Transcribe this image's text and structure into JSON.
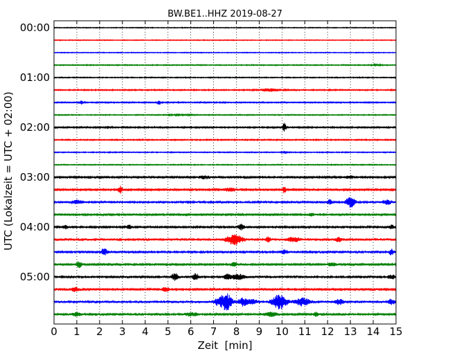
{
  "chart_data": {
    "type": "line",
    "title": "BW.BE1..HHZ 2019-08-27",
    "xlabel": "Zeit  [min]",
    "ylabel": "UTC (Lokalzeit = UTC + 02:00)",
    "xlim": [
      0,
      15
    ],
    "x_ticks": [
      "0",
      "1",
      "2",
      "3",
      "4",
      "5",
      "6",
      "7",
      "8",
      "9",
      "10",
      "11",
      "12",
      "13",
      "14",
      "15"
    ],
    "y_ticks": [
      {
        "label": "00:00",
        "row": 0
      },
      {
        "label": "01:00",
        "row": 4
      },
      {
        "label": "02:00",
        "row": 8
      },
      {
        "label": "03:00",
        "row": 12
      },
      {
        "label": "04:00",
        "row": 16
      },
      {
        "label": "05:00",
        "row": 20
      }
    ],
    "grid": "vertical-dotted",
    "trace_colors": [
      "#000000",
      "#ff0000",
      "#0000ff",
      "#008000"
    ],
    "traces": [
      {
        "start": "00:00",
        "noise": 0.4,
        "events": []
      },
      {
        "start": "00:15",
        "noise": 0.4,
        "events": []
      },
      {
        "start": "00:30",
        "noise": 0.4,
        "events": []
      },
      {
        "start": "00:45",
        "noise": 0.5,
        "events": [
          {
            "t": 14.1,
            "a": 2,
            "w": 0.15
          }
        ]
      },
      {
        "start": "01:00",
        "noise": 0.5,
        "events": []
      },
      {
        "start": "01:15",
        "noise": 0.6,
        "events": [
          {
            "t": 9.5,
            "a": 2,
            "w": 0.5
          }
        ]
      },
      {
        "start": "01:30",
        "noise": 0.6,
        "events": [
          {
            "t": 1.2,
            "a": 2.5,
            "w": 0.1
          },
          {
            "t": 4.6,
            "a": 3,
            "w": 0.1
          }
        ]
      },
      {
        "start": "01:45",
        "noise": 0.5,
        "events": [
          {
            "t": 5.5,
            "a": 1.5,
            "w": 0.4
          }
        ]
      },
      {
        "start": "02:00",
        "noise": 0.7,
        "events": [
          {
            "t": 2.3,
            "a": 1.5,
            "w": 0.2
          },
          {
            "t": 10.1,
            "a": 6,
            "w": 0.08
          }
        ]
      },
      {
        "start": "02:15",
        "noise": 0.6,
        "events": []
      },
      {
        "start": "02:30",
        "noise": 0.5,
        "events": [
          {
            "t": 10.1,
            "a": 1.5,
            "w": 0.1
          }
        ]
      },
      {
        "start": "02:45",
        "noise": 0.5,
        "events": []
      },
      {
        "start": "03:00",
        "noise": 0.9,
        "events": [
          {
            "t": 6.6,
            "a": 2,
            "w": 0.3
          },
          {
            "t": 13.0,
            "a": 2,
            "w": 0.3
          }
        ]
      },
      {
        "start": "03:15",
        "noise": 0.9,
        "events": [
          {
            "t": 2.9,
            "a": 5,
            "w": 0.1
          },
          {
            "t": 7.7,
            "a": 2.5,
            "w": 0.3
          },
          {
            "t": 10.1,
            "a": 5,
            "w": 0.08
          }
        ]
      },
      {
        "start": "03:30",
        "noise": 1.2,
        "events": [
          {
            "t": 1.0,
            "a": 2.5,
            "w": 0.25
          },
          {
            "t": 12.1,
            "a": 3.5,
            "w": 0.1
          },
          {
            "t": 13.0,
            "a": 7,
            "w": 0.2
          },
          {
            "t": 14.6,
            "a": 3,
            "w": 0.2
          }
        ]
      },
      {
        "start": "03:45",
        "noise": 0.9,
        "events": [
          {
            "t": 11.3,
            "a": 2,
            "w": 0.15
          }
        ]
      },
      {
        "start": "04:00",
        "noise": 1.0,
        "events": [
          {
            "t": 0.5,
            "a": 2.5,
            "w": 0.15
          },
          {
            "t": 3.3,
            "a": 3,
            "w": 0.1
          },
          {
            "t": 8.2,
            "a": 4,
            "w": 0.15
          },
          {
            "t": 14.8,
            "a": 3,
            "w": 0.1
          }
        ]
      },
      {
        "start": "04:15",
        "noise": 1.3,
        "events": [
          {
            "t": 7.9,
            "a": 7,
            "w": 0.35
          },
          {
            "t": 9.4,
            "a": 3.5,
            "w": 0.1
          },
          {
            "t": 10.5,
            "a": 3,
            "w": 0.3
          },
          {
            "t": 12.5,
            "a": 3,
            "w": 0.15
          }
        ]
      },
      {
        "start": "04:30",
        "noise": 1.1,
        "events": [
          {
            "t": 2.2,
            "a": 4.5,
            "w": 0.15
          },
          {
            "t": 10.1,
            "a": 3,
            "w": 0.15
          },
          {
            "t": 14.8,
            "a": 4,
            "w": 0.1
          }
        ]
      },
      {
        "start": "04:45",
        "noise": 1.0,
        "events": [
          {
            "t": 1.1,
            "a": 4.5,
            "w": 0.12
          },
          {
            "t": 7.9,
            "a": 3,
            "w": 0.15
          },
          {
            "t": 12.2,
            "a": 2.5,
            "w": 0.2
          }
        ]
      },
      {
        "start": "05:00",
        "noise": 1.2,
        "events": [
          {
            "t": 5.3,
            "a": 5,
            "w": 0.15
          },
          {
            "t": 6.2,
            "a": 4.5,
            "w": 0.15
          },
          {
            "t": 7.6,
            "a": 4,
            "w": 0.15
          },
          {
            "t": 8.1,
            "a": 3.5,
            "w": 0.3
          },
          {
            "t": 14.8,
            "a": 3,
            "w": 0.15
          }
        ]
      },
      {
        "start": "05:15",
        "noise": 1.0,
        "events": [
          {
            "t": 0.9,
            "a": 3,
            "w": 0.2
          },
          {
            "t": 4.9,
            "a": 3.5,
            "w": 0.15
          }
        ]
      },
      {
        "start": "05:30",
        "noise": 1.5,
        "events": [
          {
            "t": 7.3,
            "a": 6,
            "w": 0.25
          },
          {
            "t": 7.6,
            "a": 10,
            "w": 0.2
          },
          {
            "t": 8.3,
            "a": 5,
            "w": 0.2
          },
          {
            "t": 8.7,
            "a": 3,
            "w": 0.2
          },
          {
            "t": 9.9,
            "a": 10,
            "w": 0.3
          },
          {
            "t": 10.9,
            "a": 5,
            "w": 0.3
          },
          {
            "t": 12.5,
            "a": 3,
            "w": 0.2
          },
          {
            "t": 14.8,
            "a": 3,
            "w": 0.15
          }
        ]
      },
      {
        "start": "05:45",
        "noise": 1.1,
        "events": [
          {
            "t": 1.0,
            "a": 2.5,
            "w": 0.2
          },
          {
            "t": 6.0,
            "a": 2.5,
            "w": 0.3
          },
          {
            "t": 9.5,
            "a": 3,
            "w": 0.3
          },
          {
            "t": 11.5,
            "a": 3,
            "w": 0.1
          }
        ]
      }
    ]
  }
}
